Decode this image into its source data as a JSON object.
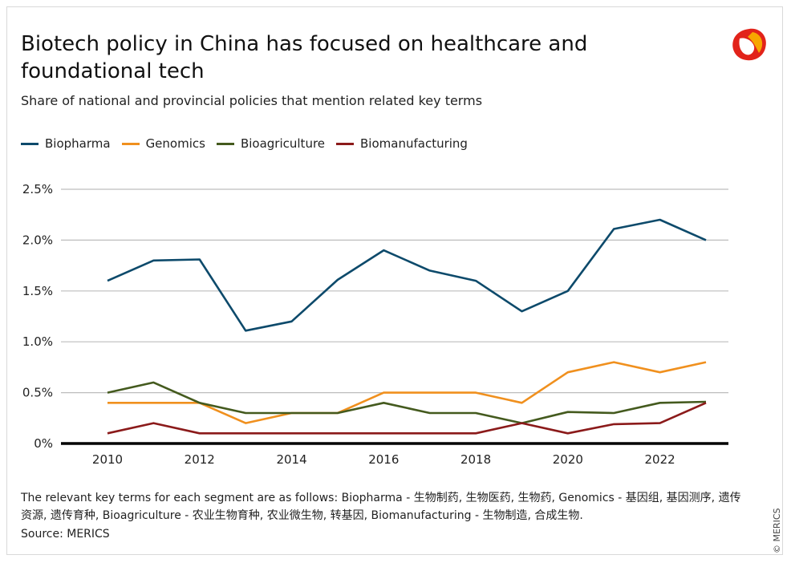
{
  "title": "Biotech policy in China has focused on healthcare and foundational tech",
  "subtitle": "Share of national and provincial policies that mention related key terms",
  "note": "The relevant key terms for each segment are as follows: Biopharma - 生物制药, 生物医药, 生物药, Genomics - 基因组, 基因测序, 遗传资源, 遗传育种, Bioagriculture - 农业生物育种, 农业微生物, 转基因, Biomanufacturing - 生物制造, 合成生物.",
  "source": "Source: MERICS",
  "copyright": "© MERICS",
  "logo": {
    "icon": "merics-logo-icon",
    "colors": [
      "#e2231a",
      "#f7a600",
      "#c4161c"
    ]
  },
  "chart_data": {
    "type": "line",
    "x": [
      2010,
      2011,
      2012,
      2013,
      2014,
      2015,
      2016,
      2017,
      2018,
      2019,
      2020,
      2021,
      2022,
      2023
    ],
    "xticks": [
      2010,
      2012,
      2014,
      2016,
      2018,
      2020,
      2022
    ],
    "xtick_labels": [
      "2010",
      "2012",
      "2014",
      "2016",
      "2018",
      "2020",
      "2022"
    ],
    "ylim": [
      0,
      2.5
    ],
    "yticks": [
      0,
      0.5,
      1.0,
      1.5,
      2.0,
      2.5
    ],
    "ytick_labels": [
      "0%",
      "0.5%",
      "1.0%",
      "1.5%",
      "2.0%",
      "2.5%"
    ],
    "grid": "horizontal",
    "legend_position": "top-left",
    "series": [
      {
        "name": "Biopharma",
        "color": "#0d4a6b",
        "values": [
          1.6,
          1.8,
          1.81,
          1.11,
          1.2,
          1.61,
          1.9,
          1.7,
          1.6,
          1.3,
          1.5,
          2.11,
          2.2,
          2.0
        ]
      },
      {
        "name": "Genomics",
        "color": "#f0901e",
        "values": [
          0.4,
          0.4,
          0.4,
          0.2,
          0.3,
          0.3,
          0.5,
          0.5,
          0.5,
          0.4,
          0.7,
          0.8,
          0.7,
          0.8
        ]
      },
      {
        "name": "Bioagriculture",
        "color": "#445a1e",
        "values": [
          0.5,
          0.6,
          0.4,
          0.3,
          0.3,
          0.3,
          0.4,
          0.3,
          0.3,
          0.2,
          0.31,
          0.3,
          0.4,
          0.41
        ]
      },
      {
        "name": "Biomanufacturing",
        "color": "#8b1a1a",
        "values": [
          0.1,
          0.2,
          0.1,
          0.1,
          0.1,
          0.1,
          0.1,
          0.1,
          0.1,
          0.2,
          0.1,
          0.19,
          0.2,
          0.4
        ]
      }
    ]
  }
}
